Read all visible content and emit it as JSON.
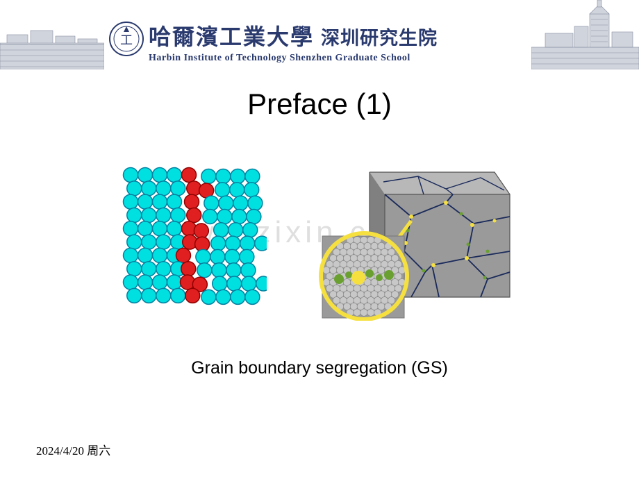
{
  "header": {
    "institution_cn_main": "哈爾濱工業大學",
    "institution_cn_dept": "深圳研究生院",
    "institution_en": "Harbin Institute of Technology Shenzhen Graduate School",
    "logo_char": "工",
    "text_color": "#2a3a6e",
    "logo_stroke": "#2a3a6e",
    "building_fill": "#d0d4dc",
    "building_stroke": "#868ea0"
  },
  "slide": {
    "title": "Preface (1)",
    "caption": "Grain boundary segregation (GS)",
    "title_fontsize": 42,
    "caption_fontsize": 25
  },
  "watermark": {
    "text": "www.zixin.com.cn",
    "color": "rgba(140,140,140,0.28)"
  },
  "footer": {
    "date_text": "2024/4/20 周六",
    "fontsize": 17
  },
  "fig1": {
    "type": "atomic-lattice-diagram",
    "description": "2D grain boundary schematic with two grains of cyan atoms separated by a column of red segregated atoms",
    "bulk_atom_color": "#00e0e0",
    "bulk_atom_stroke": "#0080a0",
    "segregated_atom_color": "#e02020",
    "segregated_atom_stroke": "#900000",
    "atom_radius": 10.5,
    "atom_stroke_width": 1.5,
    "background": "#ffffff",
    "rows": 10,
    "left_grain_cols": 4,
    "right_grain_cols": 4,
    "boundary_atoms_per_row": 1
  },
  "fig2": {
    "type": "polycrystal-cube-render",
    "description": "3D rendered cube of a nanocrystalline microstructure showing grain boundaries as a dark network with yellow/green solute atoms segregated along them; circular yellow callout magnifies one boundary region",
    "cube_fill": "#9a9a9a",
    "cube_top_fill": "#b8b8b8",
    "cube_side_fill": "#808080",
    "gb_line_color": "#1a2a5a",
    "gb_line_width": 1.8,
    "solute_colors": [
      "#f5e040",
      "#6aa030"
    ],
    "callout_ring_color": "#f5e040",
    "callout_ring_width": 6,
    "callout_radius": 68,
    "arrow_color": "#f5e040",
    "background": "#ffffff",
    "inset_bg": "#9a9a9a"
  }
}
